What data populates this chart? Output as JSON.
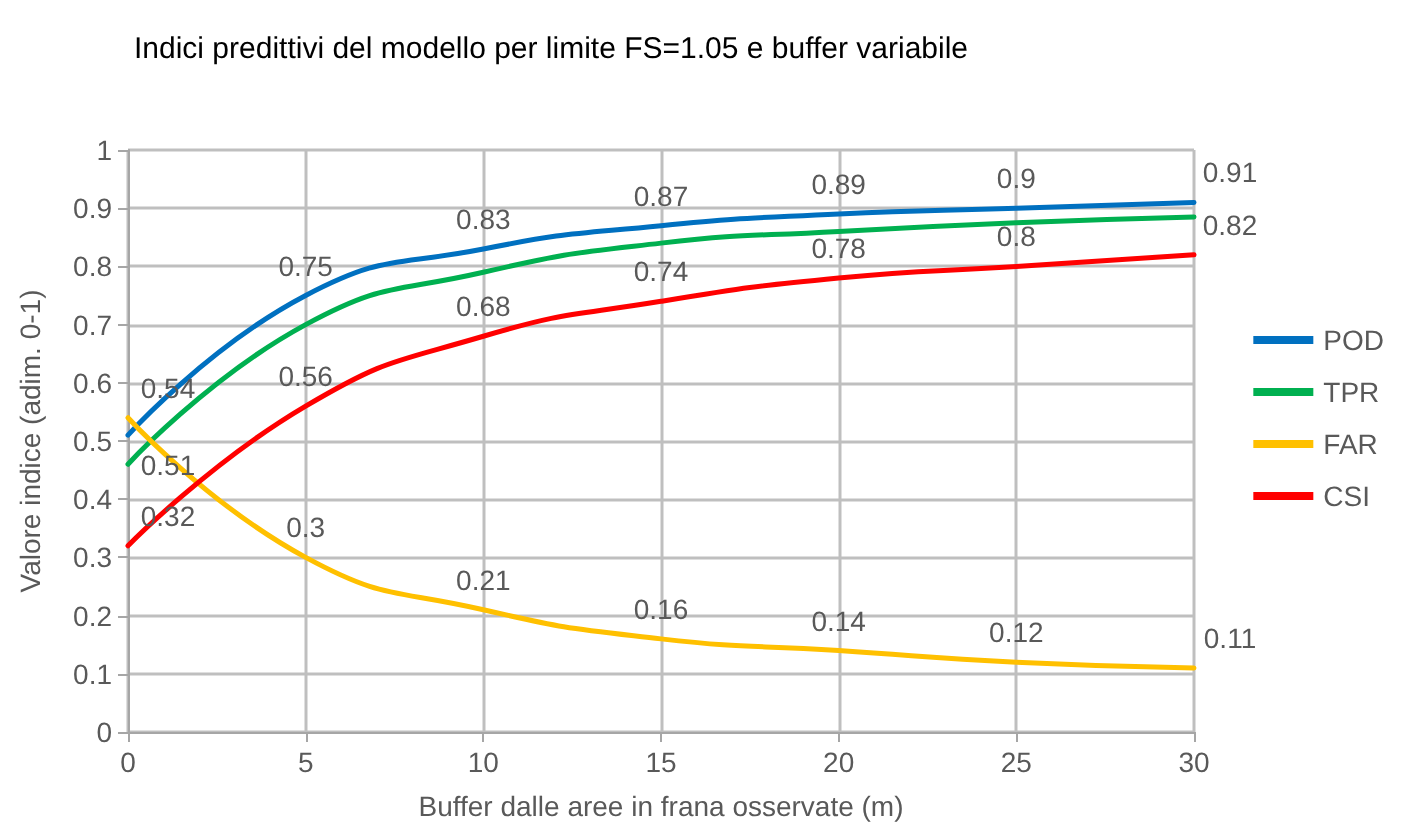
{
  "chart_data": {
    "type": "line",
    "title": "Indici predittivi del modello per limite FS=1.05 e buffer variabile",
    "xlabel": "Buffer dalle aree in frana osservate (m)",
    "ylabel": "Valore indice (adim. 0-1)",
    "x": [
      0,
      5,
      10,
      15,
      20,
      25,
      30
    ],
    "series": [
      {
        "name": "POD",
        "color": "#0070c0",
        "values": [
          0.51,
          0.75,
          0.83,
          0.87,
          0.89,
          0.9,
          0.91
        ],
        "value_labels": [
          "0.51",
          "0.75",
          "0.83",
          "0.87",
          "0.89",
          "0.9",
          "0.91"
        ]
      },
      {
        "name": "TPR",
        "color": "#00b050",
        "values": [
          0.46,
          0.7,
          0.79,
          0.84,
          0.86,
          0.875,
          0.885
        ]
      },
      {
        "name": "FAR",
        "color": "#ffc000",
        "values": [
          0.54,
          0.3,
          0.21,
          0.16,
          0.14,
          0.12,
          0.11
        ],
        "value_labels": [
          "0.54",
          "0.3",
          "0.21",
          "0.16",
          "0.14",
          "0.12",
          "0.11"
        ]
      },
      {
        "name": "CSI",
        "color": "#ff0000",
        "values": [
          0.32,
          0.56,
          0.68,
          0.74,
          0.78,
          0.8,
          0.82
        ],
        "value_labels": [
          "0.32",
          "0.56",
          "0.68",
          "0.74",
          "0.78",
          "0.8",
          "0.82"
        ]
      }
    ],
    "xlim": [
      0,
      30
    ],
    "xticks": [
      0,
      5,
      10,
      15,
      20,
      25,
      30
    ],
    "ylim": [
      0,
      1
    ],
    "yticks": [
      0,
      0.1,
      0.2,
      0.3,
      0.4,
      0.5,
      0.6,
      0.7,
      0.8,
      0.9,
      1
    ],
    "grid": true,
    "legend": "right",
    "marker": "none",
    "line_style": "solid"
  }
}
